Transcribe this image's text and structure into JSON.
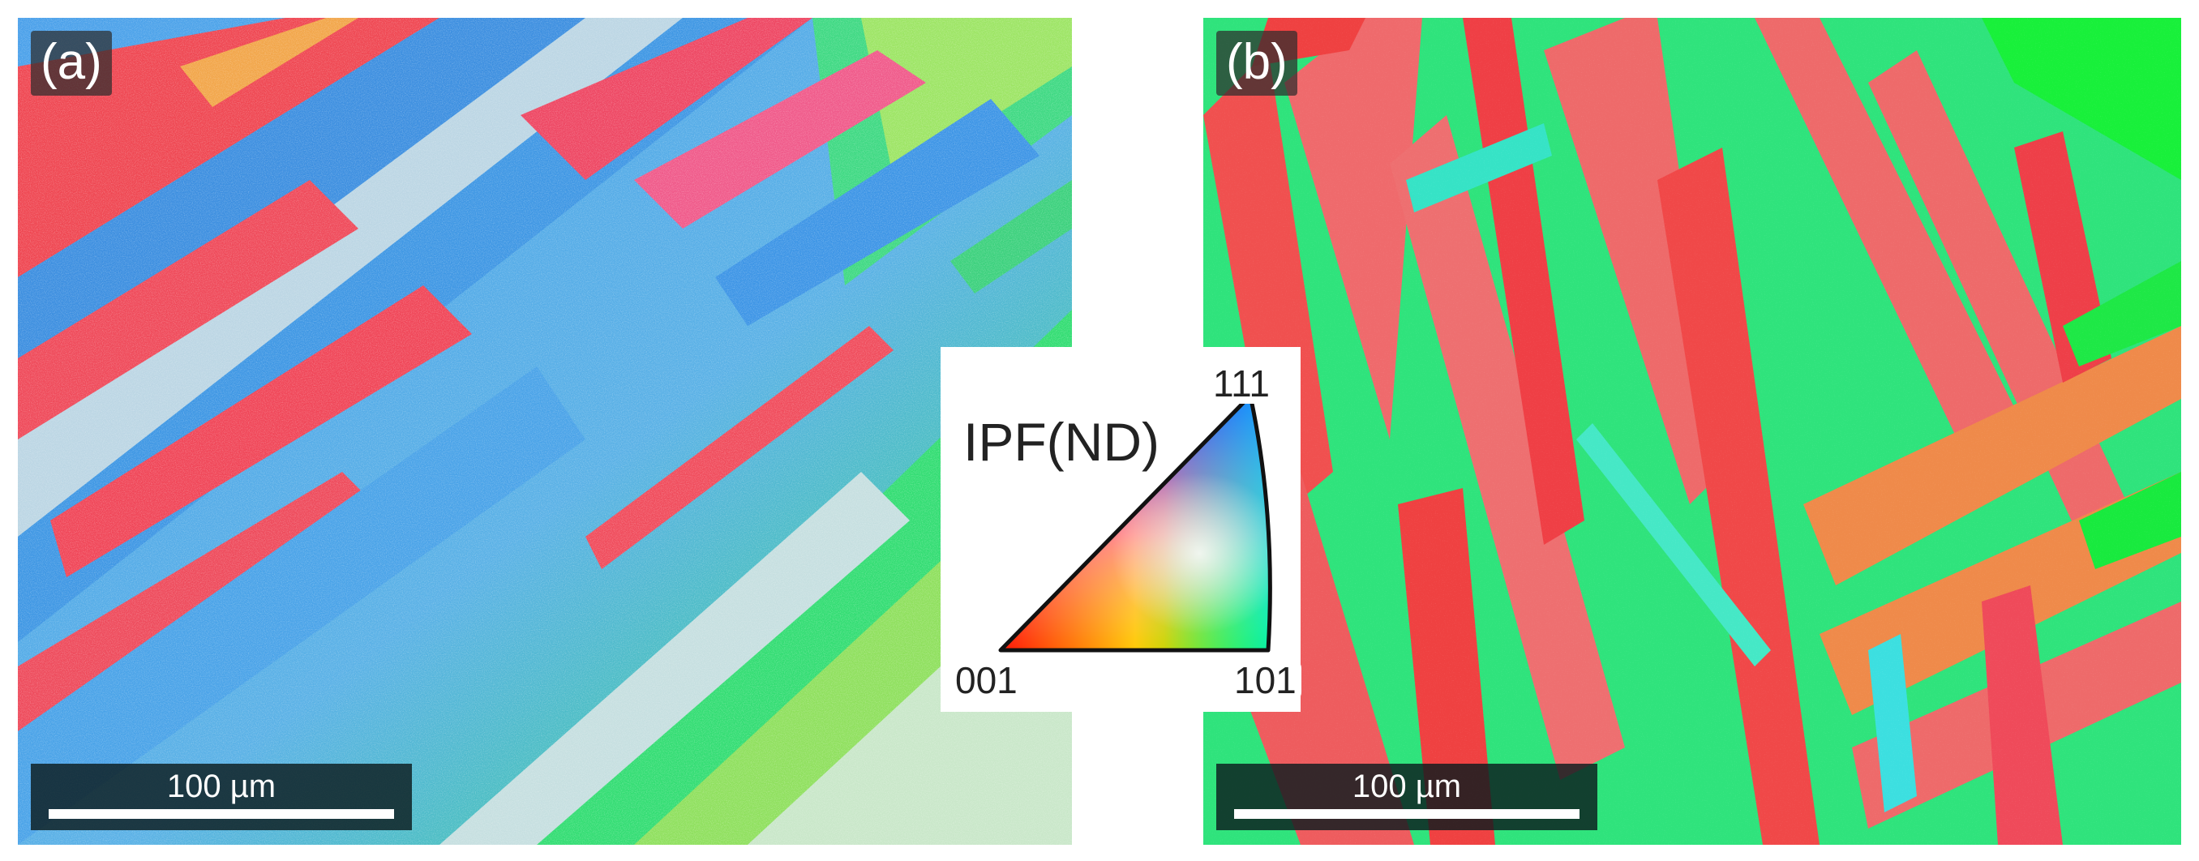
{
  "panel_a": {
    "label": "(a)",
    "scale_bar": "100 µm"
  },
  "panel_b": {
    "label": "(b)",
    "scale_bar": "100 µm"
  },
  "legend": {
    "title": "IPF(ND)",
    "corner_111": "111",
    "corner_001": "001",
    "corner_101": "101",
    "colors": {
      "001": "#ff0000",
      "101": "#00ff00",
      "111": "#0000ff"
    }
  },
  "palette": {
    "blue_grain": "#3f9be6",
    "pale_grain": "#b9d8e6",
    "red_grain": "#f0434f",
    "green_grain": "#2fe66e",
    "lime_grain": "#9fe35a",
    "salmon_grain": "#ee6a6a",
    "orange_grain": "#ef8a4a",
    "cyan_grain": "#36e3c6",
    "bright_green": "#18f03a"
  }
}
